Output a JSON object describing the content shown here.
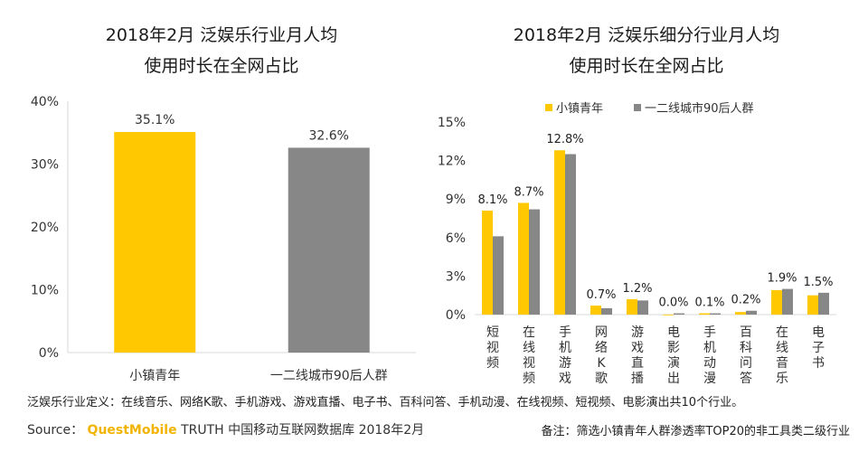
{
  "chart_data": [
    {
      "type": "bar",
      "title_lines": [
        "2018年2月 泛娱乐行业月人均",
        "使用时长在全网占比"
      ],
      "categories": [
        "小镇青年",
        "一二线城市90后人群"
      ],
      "values": [
        35.1,
        32.6
      ],
      "value_labels": [
        "35.1%",
        "32.6%"
      ],
      "ylim": [
        0,
        40
      ],
      "yticks": [
        "0%",
        "10%",
        "20%",
        "30%",
        "40%"
      ],
      "colors": [
        "#FFC800",
        "#878787"
      ],
      "grid": false
    },
    {
      "type": "bar",
      "title_lines": [
        "2018年2月 泛娱乐细分行业月人均",
        "使用时长在全网占比"
      ],
      "categories": [
        "短视频",
        "在线视频",
        "手机游戏",
        "网络K歌",
        "游戏直播",
        "电影演出",
        "手机动漫",
        "百科问答",
        "在线音乐",
        "电子书"
      ],
      "series": [
        {
          "name": "小镇青年",
          "values": [
            8.1,
            8.7,
            12.8,
            0.7,
            1.2,
            0.0,
            0.1,
            0.2,
            1.9,
            1.5
          ],
          "color": "#FFC800"
        },
        {
          "name": "一二线城市90后人群",
          "values": [
            6.1,
            8.2,
            12.5,
            0.5,
            1.1,
            0.1,
            0.1,
            0.3,
            2.0,
            1.7
          ],
          "color": "#878787"
        }
      ],
      "value_labels": [
        "8.1%",
        "8.7%",
        "12.8%",
        "0.7%",
        "1.2%",
        "0.0%",
        "0.1%",
        "0.2%",
        "1.9%",
        "1.5%"
      ],
      "ylim": [
        0,
        15
      ],
      "yticks": [
        "0%",
        "3%",
        "6%",
        "9%",
        "12%",
        "15%"
      ],
      "legend": "top",
      "grid": false
    }
  ],
  "footer": {
    "definition": "泛娱乐行业定义：在线音乐、网络K歌、手机游戏、游戏直播、电子书、百科问答、手机动漫、在线视频、短视频、电影演出共10个行业。",
    "source_prefix": "Source：",
    "source_brand": "QuestMobile",
    "source_rest": "TRUTH 中国移动互联网数据库 2018年2月",
    "note": "备注：筛选小镇青年人群渗透率TOP20的非工具类二级行业"
  }
}
